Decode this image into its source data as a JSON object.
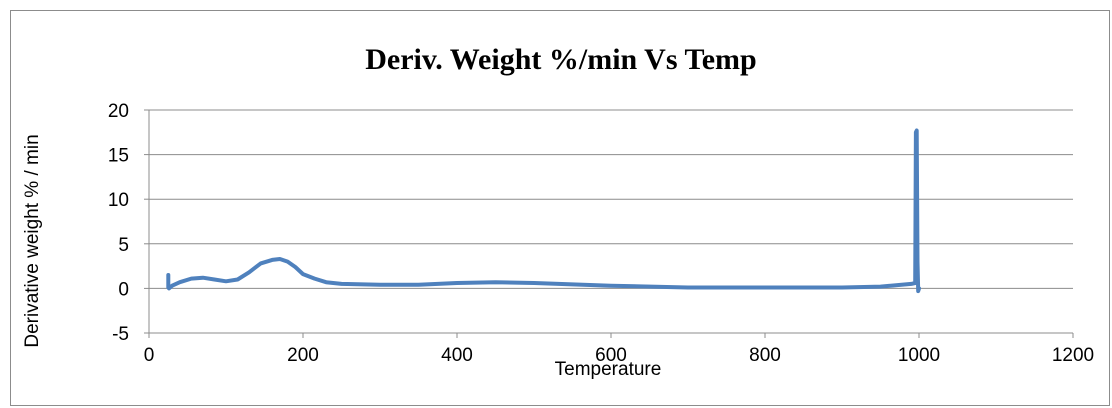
{
  "chart_data": {
    "type": "line",
    "title": "Deriv. Weight %/min Vs Temp",
    "xlabel": "Temperature",
    "ylabel": "Derivative weight % / min",
    "xlim": [
      0,
      1200
    ],
    "ylim": [
      -5,
      20
    ],
    "x_ticks": [
      "0",
      "200",
      "400",
      "600",
      "800",
      "1000",
      "1200"
    ],
    "y_ticks": [
      "-5",
      "0",
      "5",
      "10",
      "15",
      "20"
    ],
    "grid": true,
    "legend": "none",
    "series": [
      {
        "color": "#4f81bd",
        "x": [
          25,
          25,
          26,
          30,
          40,
          55,
          70,
          85,
          100,
          115,
          130,
          145,
          160,
          170,
          180,
          190,
          200,
          215,
          230,
          250,
          300,
          350,
          400,
          450,
          500,
          600,
          700,
          800,
          900,
          950,
          990,
          995,
          996,
          997,
          998,
          999,
          1000
        ],
        "y": [
          1.5,
          0.1,
          0.0,
          0.3,
          0.7,
          1.1,
          1.2,
          1.0,
          0.8,
          1.0,
          1.8,
          2.8,
          3.2,
          3.3,
          3.0,
          2.4,
          1.6,
          1.1,
          0.7,
          0.5,
          0.4,
          0.4,
          0.6,
          0.7,
          0.6,
          0.3,
          0.1,
          0.1,
          0.1,
          0.2,
          0.5,
          0.6,
          17.5,
          17.7,
          3.0,
          -0.3,
          0.0
        ]
      }
    ]
  }
}
